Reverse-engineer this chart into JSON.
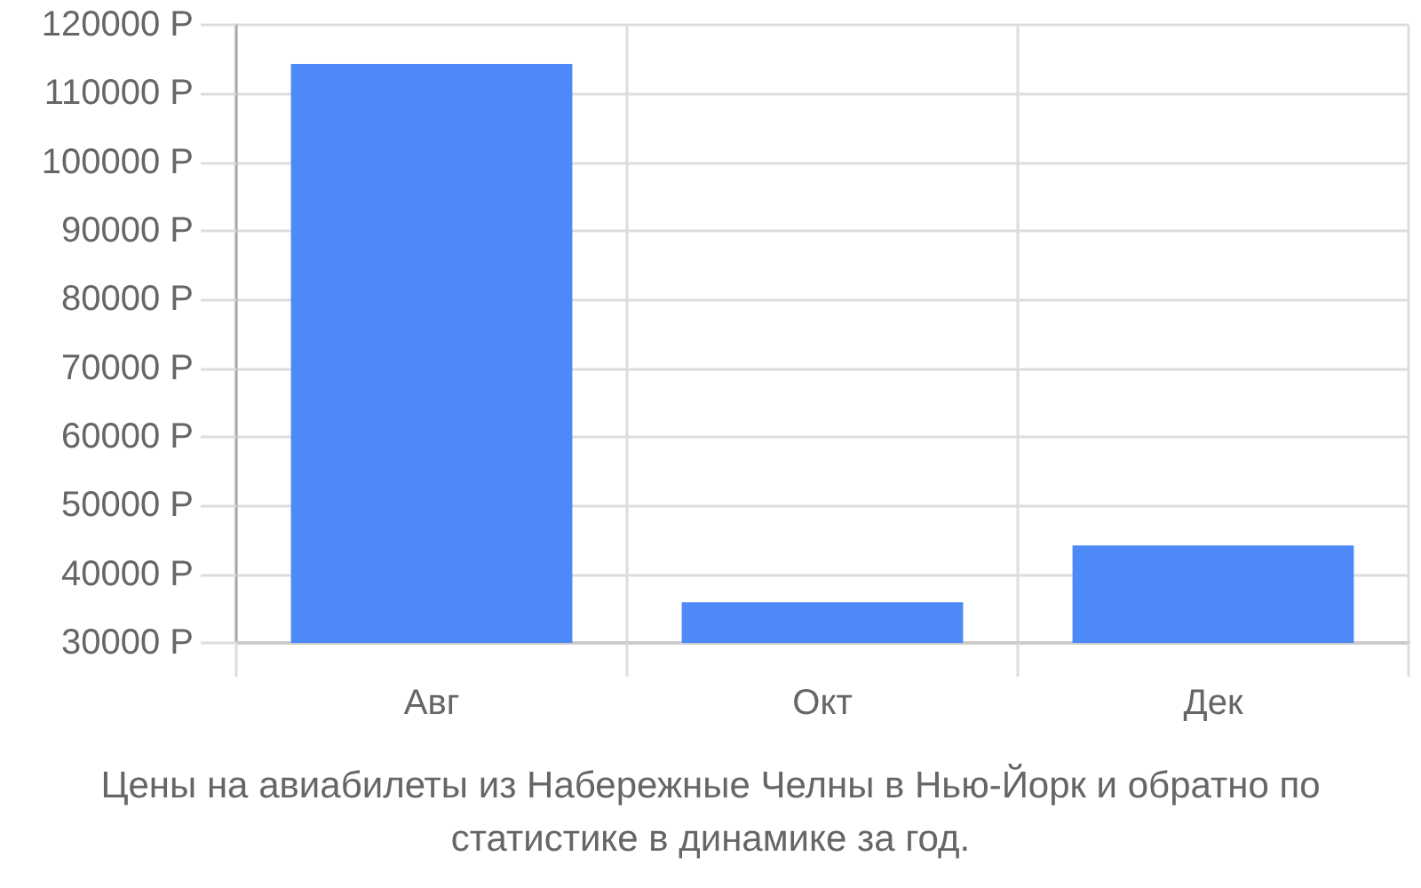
{
  "chart_data": {
    "type": "bar",
    "categories": [
      "Авг",
      "Окт",
      "Дек"
    ],
    "values": [
      114300,
      35900,
      44200
    ],
    "color": "#4e89f8",
    "ylim": [
      30000,
      120000
    ],
    "yticks": [
      {
        "value": 30000,
        "label": "30000 Р"
      },
      {
        "value": 40000,
        "label": "40000 Р"
      },
      {
        "value": 50000,
        "label": "50000 Р"
      },
      {
        "value": 60000,
        "label": "60000 Р"
      },
      {
        "value": 70000,
        "label": "70000 Р"
      },
      {
        "value": 80000,
        "label": "80000 Р"
      },
      {
        "value": 90000,
        "label": "90000 Р"
      },
      {
        "value": 100000,
        "label": "100000 Р"
      },
      {
        "value": 110000,
        "label": "110000 Р"
      },
      {
        "value": 120000,
        "label": "120000 Р"
      }
    ],
    "grid": true,
    "annotations": [
      "Цены на авиабилеты из Набережные Челны в Нью-Йорк и обратно по статистике в динамике за год."
    ]
  }
}
